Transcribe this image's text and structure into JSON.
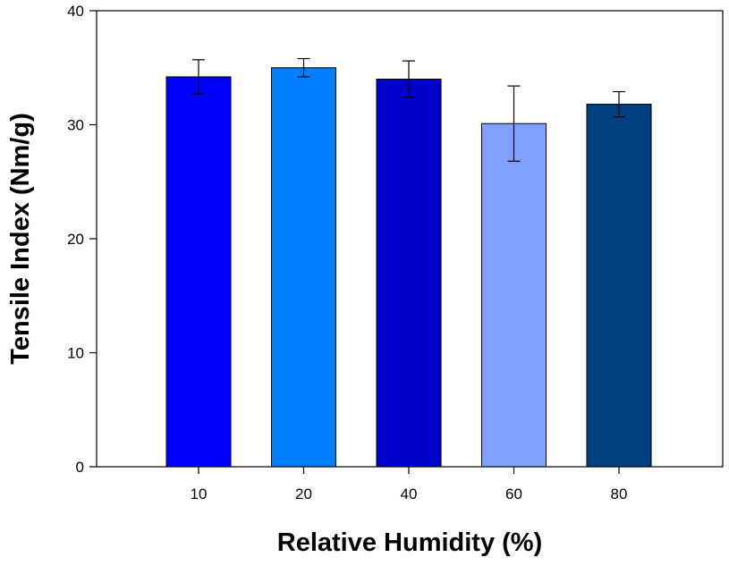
{
  "chart_data": {
    "type": "bar",
    "xlabel": "Relative Humidity (%)",
    "ylabel": "Tensile Index (Nm/g)",
    "categories": [
      "10",
      "20",
      "40",
      "60",
      "80"
    ],
    "values": [
      34.2,
      35.0,
      34.0,
      30.1,
      31.8
    ],
    "error": [
      1.5,
      0.8,
      1.6,
      3.3,
      1.1
    ],
    "bar_colors": [
      "#0000ff",
      "#0080ff",
      "#0000cc",
      "#80a0ff",
      "#004080"
    ],
    "ylim": [
      0,
      40
    ],
    "yticks": [
      "0",
      "10",
      "20",
      "30",
      "40"
    ],
    "grid": false,
    "legend": "none"
  }
}
